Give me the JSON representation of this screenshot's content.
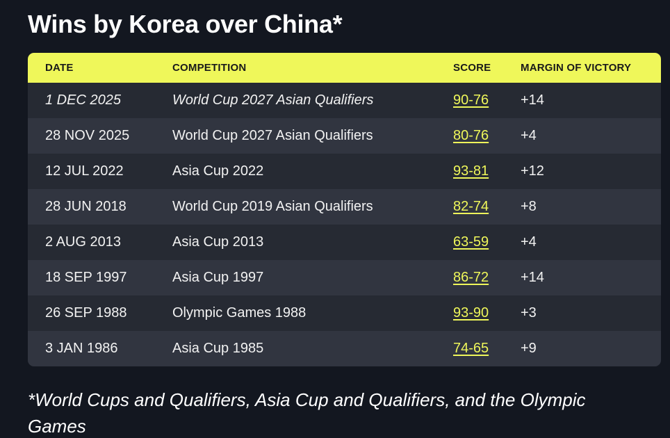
{
  "title": "Wins by Korea over China*",
  "table": {
    "headers": {
      "date": "DATE",
      "competition": "COMPETITION",
      "score": "SCORE",
      "margin": "MARGIN OF VICTORY"
    },
    "rows": [
      {
        "date": "1 DEC 2025",
        "competition": "World Cup 2027 Asian Qualifiers",
        "score": "90-76",
        "margin": "+14"
      },
      {
        "date": "28 NOV 2025",
        "competition": "World Cup 2027 Asian Qualifiers",
        "score": "80-76",
        "margin": "+4"
      },
      {
        "date": "12 JUL 2022",
        "competition": "Asia Cup 2022",
        "score": "93-81",
        "margin": "+12"
      },
      {
        "date": "28 JUN 2018",
        "competition": "World Cup 2019 Asian Qualifiers",
        "score": "82-74",
        "margin": "+8"
      },
      {
        "date": "2 AUG 2013",
        "competition": "Asia Cup 2013",
        "score": "63-59",
        "margin": "+4"
      },
      {
        "date": "18 SEP 1997",
        "competition": "Asia Cup 1997",
        "score": "86-72",
        "margin": "+14"
      },
      {
        "date": "26 SEP 1988",
        "competition": "Olympic Games 1988",
        "score": "93-90",
        "margin": "+3"
      },
      {
        "date": "3 JAN 1986",
        "competition": "Asia Cup 1985",
        "score": "74-65",
        "margin": "+9"
      }
    ]
  },
  "footnote": "*World Cups and Qualifiers, Asia Cup and Qualifiers, and the Olympic Games",
  "colors": {
    "background": "#131720",
    "header_accent": "#eff75a",
    "row_dark": "#262a33",
    "row_light": "#313540"
  }
}
